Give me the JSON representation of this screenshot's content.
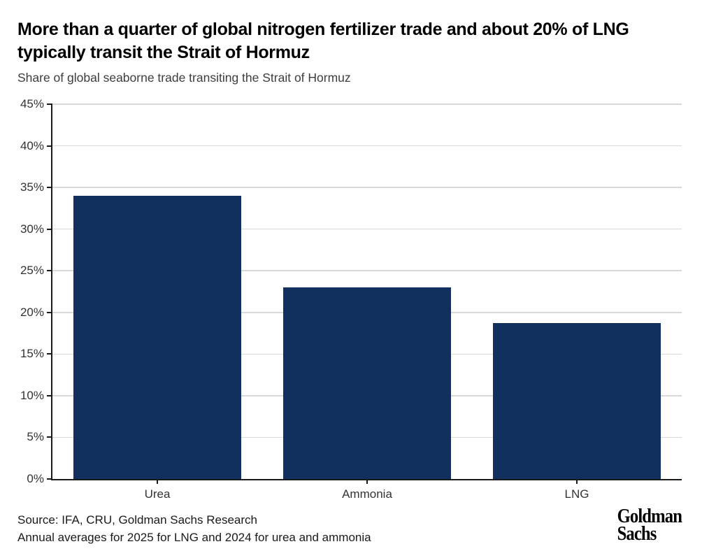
{
  "header": {
    "title_line1": "More than a quarter of global nitrogen fertilizer trade and about 20% of LNG",
    "title_line2": "typically transit the Strait of Hormuz",
    "subtitle": "Share of global seaborne trade transiting the Strait of Hormuz"
  },
  "chart_data": {
    "type": "bar",
    "title": "More than a quarter of global nitrogen fertilizer trade and about 20% of LNG typically transit the Strait of Hormuz",
    "subtitle": "Share of global seaborne trade transiting the Strait of Hormuz",
    "categories": [
      "Urea",
      "Ammonia",
      "LNG"
    ],
    "values": [
      34,
      23,
      18.7
    ],
    "xlabel": "",
    "ylabel": "",
    "ylim": [
      0,
      45
    ],
    "ytick_step": 5,
    "ytick_labels": [
      "0%",
      "5%",
      "10%",
      "15%",
      "20%",
      "25%",
      "30%",
      "35%",
      "40%",
      "45%"
    ],
    "grid": "horizontal",
    "legend": "none",
    "bar_color": "#12305E",
    "gridline_color": "#d9d9d9",
    "axis_color": "#1a1a1a",
    "tick_label_color": "#333333"
  },
  "footer": {
    "source": "Source: IFA, CRU, Goldman Sachs Research",
    "note": "Annual averages for 2025 for LNG and 2024 for urea and ammonia"
  },
  "logo": {
    "line1": "Goldman",
    "line2": "Sachs"
  }
}
